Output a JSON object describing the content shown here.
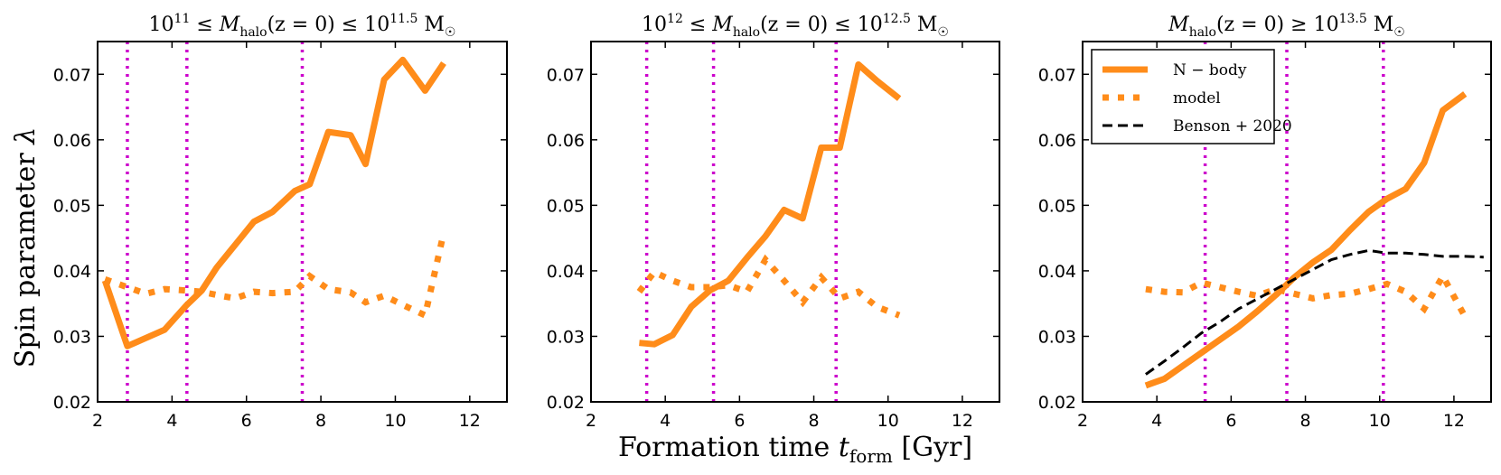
{
  "figure": {
    "ylabel": "Spin parameter λ",
    "xlabel": "Formation time t_form [Gyr]",
    "xlabel_parts": {
      "main": "Formation time ",
      "var": "t",
      "sub": "form",
      "unit": " [Gyr]"
    },
    "ylabel_parts": {
      "main": "Spin parameter ",
      "var": "λ"
    }
  },
  "colors": {
    "nbody": "#ff8c1a",
    "model": "#ff8c1a",
    "benson": "#000000",
    "vlines": "#cc00cc"
  },
  "chart_data": [
    {
      "type": "line",
      "title": "10^11 ≤ M_halo(z=0) ≤ 10^11.5 M_☉",
      "title_parts": {
        "pre_base": "10",
        "pre_exp": "11",
        "op1": " ≤ ",
        "var": "M",
        "sub": "halo",
        "mid": "(z = 0)",
        "op2": " ≤ ",
        "post_base": "10",
        "post_exp": "11.5",
        "unit": " M",
        "unit_sub": "☉"
      },
      "xlim": [
        2,
        13
      ],
      "ylim": [
        0.02,
        0.075
      ],
      "xticks": [
        "2",
        "4",
        "6",
        "8",
        "10",
        "12"
      ],
      "yticks": [
        "0.02",
        "0.03",
        "0.04",
        "0.05",
        "0.06",
        "0.07"
      ],
      "vlines": [
        2.8,
        4.4,
        7.5
      ],
      "series": [
        {
          "name": "N-body",
          "style": "solid",
          "x": [
            2.2,
            2.8,
            3.2,
            3.8,
            4.4,
            4.8,
            5.2,
            5.7,
            6.2,
            6.7,
            7.3,
            7.7,
            8.2,
            8.8,
            9.2,
            9.7,
            10.2,
            10.8,
            11.3
          ],
          "y": [
            0.0385,
            0.0285,
            0.0295,
            0.031,
            0.0348,
            0.037,
            0.0405,
            0.044,
            0.0475,
            0.049,
            0.0522,
            0.0532,
            0.0612,
            0.0607,
            0.0563,
            0.0692,
            0.0722,
            0.0675,
            0.0717
          ]
        },
        {
          "name": "model",
          "style": "dotted",
          "x": [
            2.2,
            2.8,
            3.3,
            3.8,
            4.4,
            4.8,
            5.3,
            5.7,
            6.2,
            6.7,
            7.3,
            7.7,
            8.2,
            8.8,
            9.2,
            9.7,
            10.2,
            10.8,
            11.3
          ],
          "y": [
            0.0387,
            0.0375,
            0.0365,
            0.0372,
            0.037,
            0.0368,
            0.0362,
            0.0358,
            0.0368,
            0.0366,
            0.0368,
            0.0392,
            0.0372,
            0.0367,
            0.0352,
            0.0362,
            0.0348,
            0.0332,
            0.0458
          ]
        }
      ]
    },
    {
      "type": "line",
      "title": "10^12 ≤ M_halo(z=0) ≤ 10^12.5 M_☉",
      "title_parts": {
        "pre_base": "10",
        "pre_exp": "12",
        "op1": " ≤ ",
        "var": "M",
        "sub": "halo",
        "mid": "(z = 0)",
        "op2": " ≤ ",
        "post_base": "10",
        "post_exp": "12.5",
        "unit": " M",
        "unit_sub": "☉"
      },
      "xlim": [
        2,
        13
      ],
      "ylim": [
        0.02,
        0.075
      ],
      "xticks": [
        "2",
        "4",
        "6",
        "8",
        "10",
        "12"
      ],
      "yticks": [
        "0.02",
        "0.03",
        "0.04",
        "0.05",
        "0.06",
        "0.07"
      ],
      "vlines": [
        3.5,
        5.3,
        8.6
      ],
      "series": [
        {
          "name": "N-body",
          "style": "solid",
          "x": [
            3.3,
            3.7,
            4.2,
            4.7,
            5.2,
            5.7,
            6.2,
            6.7,
            7.2,
            7.7,
            8.2,
            8.7,
            9.2,
            9.7,
            10.3
          ],
          "y": [
            0.029,
            0.0288,
            0.0302,
            0.0345,
            0.037,
            0.0385,
            0.042,
            0.0453,
            0.0493,
            0.048,
            0.0588,
            0.0588,
            0.0715,
            0.069,
            0.0663
          ]
        },
        {
          "name": "model",
          "style": "dotted",
          "x": [
            3.3,
            3.7,
            4.2,
            4.7,
            5.2,
            5.7,
            6.2,
            6.7,
            7.2,
            7.7,
            8.2,
            8.7,
            9.2,
            9.7,
            10.3
          ],
          "y": [
            0.0368,
            0.0398,
            0.0385,
            0.0375,
            0.0375,
            0.0378,
            0.0368,
            0.0417,
            0.0385,
            0.0352,
            0.039,
            0.0358,
            0.0368,
            0.0345,
            0.0332
          ]
        }
      ]
    },
    {
      "type": "line",
      "title": "M_halo(z=0) ≥ 10^13.5 M_☉",
      "title_parts": {
        "var": "M",
        "sub": "halo",
        "mid": "(z = 0)",
        "op2": " ≥ ",
        "post_base": "10",
        "post_exp": "13.5",
        "unit": " M",
        "unit_sub": "☉"
      },
      "xlim": [
        2,
        13
      ],
      "ylim": [
        0.02,
        0.075
      ],
      "xticks": [
        "2",
        "4",
        "6",
        "8",
        "10",
        "12"
      ],
      "yticks": [
        "0.02",
        "0.03",
        "0.04",
        "0.05",
        "0.06",
        "0.07"
      ],
      "vlines": [
        5.3,
        7.5,
        10.1
      ],
      "legend": {
        "position": "top-left",
        "entries": [
          "N − body",
          "model",
          "Benson + 2020"
        ]
      },
      "series": [
        {
          "name": "N-body",
          "style": "solid",
          "x": [
            3.7,
            4.2,
            4.7,
            5.2,
            5.7,
            6.2,
            6.7,
            7.2,
            7.7,
            8.2,
            8.7,
            9.2,
            9.7,
            10.2,
            10.7,
            11.2,
            11.7,
            12.3
          ],
          "y": [
            0.0225,
            0.0235,
            0.0255,
            0.0275,
            0.0295,
            0.0315,
            0.0338,
            0.0363,
            0.039,
            0.0413,
            0.0432,
            0.0462,
            0.049,
            0.051,
            0.0525,
            0.0565,
            0.0645,
            0.067
          ]
        },
        {
          "name": "model",
          "style": "dotted",
          "x": [
            3.7,
            4.2,
            4.7,
            5.2,
            5.7,
            6.2,
            6.7,
            7.2,
            7.7,
            8.2,
            8.7,
            9.2,
            9.7,
            10.2,
            10.7,
            11.2,
            11.7,
            12.3
          ],
          "y": [
            0.0372,
            0.0368,
            0.0367,
            0.0382,
            0.0375,
            0.0368,
            0.0362,
            0.0372,
            0.0365,
            0.0358,
            0.0363,
            0.0365,
            0.0372,
            0.038,
            0.0368,
            0.0342,
            0.0392,
            0.033
          ]
        },
        {
          "name": "Benson+2020",
          "style": "dashed",
          "x": [
            3.7,
            4.2,
            4.7,
            5.2,
            5.7,
            6.2,
            6.7,
            7.2,
            7.7,
            8.2,
            8.7,
            9.2,
            9.7,
            10.2,
            10.7,
            11.2,
            11.7,
            12.3,
            12.8
          ],
          "y": [
            0.0242,
            0.0262,
            0.0283,
            0.0305,
            0.0322,
            0.0342,
            0.0357,
            0.0372,
            0.0387,
            0.0402,
            0.0417,
            0.0425,
            0.0431,
            0.0427,
            0.0427,
            0.0425,
            0.0422,
            0.0422,
            0.0421
          ]
        }
      ]
    }
  ]
}
